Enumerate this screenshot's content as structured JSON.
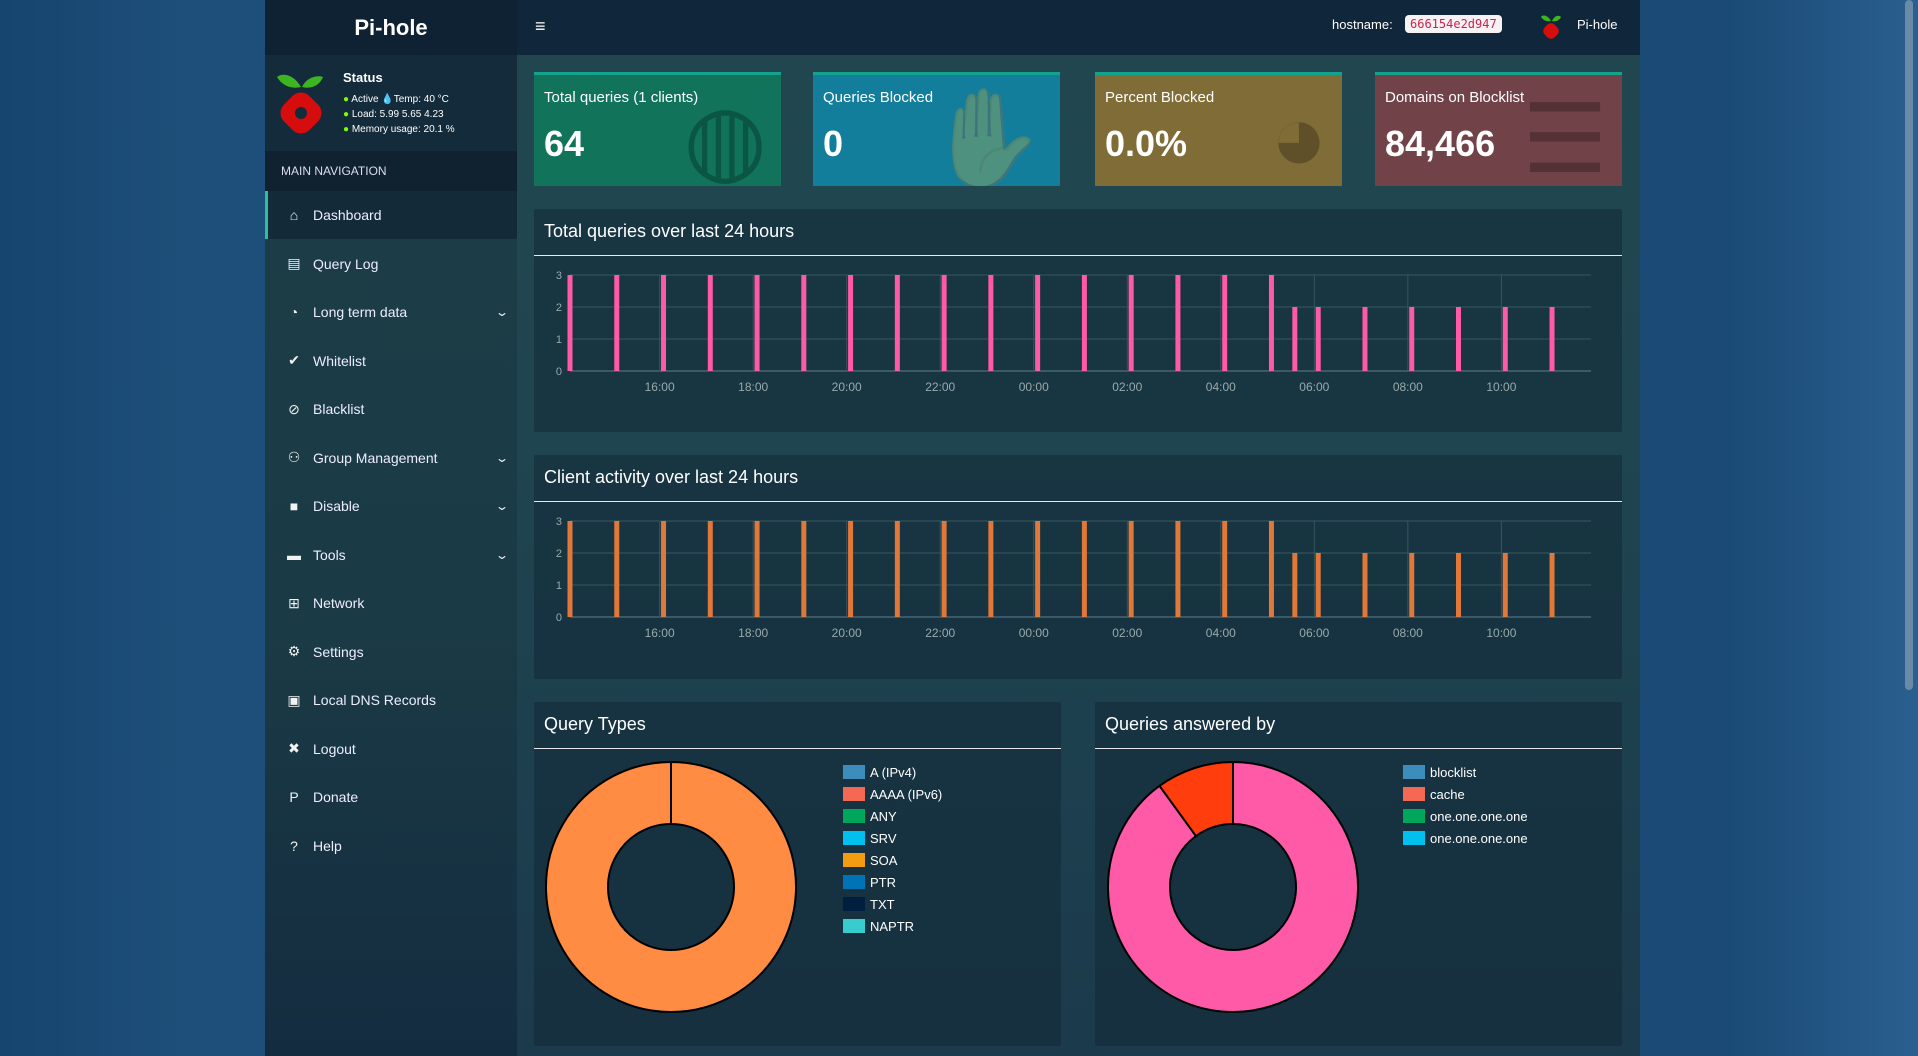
{
  "brand": "Pi-hole",
  "status": {
    "title": "Status",
    "active": "Active",
    "temp": "Temp: 40 °C",
    "load": "Load:  5.99  5.65  4.23",
    "memory": "Memory usage:  20.1 %"
  },
  "nav_header": "MAIN NAVIGATION",
  "nav": [
    {
      "label": "Dashboard",
      "icon": "home-icon",
      "glyph": "⌂",
      "active": true
    },
    {
      "label": "Query Log",
      "icon": "file-icon",
      "glyph": "▤"
    },
    {
      "label": "Long term data",
      "icon": "clock-icon",
      "glyph": "◔",
      "chevron": true
    },
    {
      "label": "Whitelist",
      "icon": "check-circle-icon",
      "glyph": "✔"
    },
    {
      "label": "Blacklist",
      "icon": "ban-icon",
      "glyph": "⊘"
    },
    {
      "label": "Group Management",
      "icon": "users-cog-icon",
      "glyph": "⚇",
      "chevron": true
    },
    {
      "label": "Disable",
      "icon": "stop-icon",
      "glyph": "■",
      "chevron": true
    },
    {
      "label": "Tools",
      "icon": "folder-icon",
      "glyph": "▬",
      "chevron": true
    },
    {
      "label": "Network",
      "icon": "network-icon",
      "glyph": "⊞"
    },
    {
      "label": "Settings",
      "icon": "gears-icon",
      "glyph": "⚙"
    },
    {
      "label": "Local DNS Records",
      "icon": "address-book-icon",
      "glyph": "▣"
    },
    {
      "label": "Logout",
      "icon": "user-times-icon",
      "glyph": "✖"
    },
    {
      "label": "Donate",
      "icon": "paypal-icon",
      "glyph": "P"
    },
    {
      "label": "Help",
      "icon": "question-circle-icon",
      "glyph": "?"
    }
  ],
  "topbar": {
    "hostname_label": "hostname:",
    "hostname": "666154e2d947",
    "user": "Pi-hole"
  },
  "stats": [
    {
      "label": "Total queries (1 clients)",
      "value": "64",
      "color": "#10735a",
      "icon": "globe-icon",
      "glyph": "◍"
    },
    {
      "label": "Queries Blocked",
      "value": "0",
      "color": "#137e9c",
      "icon": "hand-icon",
      "glyph": "✋"
    },
    {
      "label": "Percent Blocked",
      "value": "0.0%",
      "color": "#806c37",
      "icon": "pie-chart-icon",
      "glyph": "◕"
    },
    {
      "label": "Domains on Blocklist",
      "value": "84,466",
      "color": "#714348",
      "icon": "list-icon",
      "glyph": "☰"
    }
  ],
  "chart_data": [
    {
      "type": "bar",
      "title": "Total queries over last 24 hours",
      "color": "#ff5aa8",
      "xlim": [
        "14:05",
        "11:55"
      ],
      "ylim": [
        0,
        3
      ],
      "yticks": [
        "0",
        "1",
        "2",
        "3"
      ],
      "xticks": [
        "16:00",
        "18:00",
        "20:00",
        "22:00",
        "00:00",
        "02:00",
        "04:00",
        "06:00",
        "08:00",
        "10:00"
      ],
      "x": [
        "14:05",
        "15:05",
        "16:05",
        "17:05",
        "18:05",
        "19:05",
        "20:05",
        "21:05",
        "22:05",
        "23:05",
        "00:05",
        "01:05",
        "02:05",
        "03:05",
        "04:05",
        "05:05",
        "05:35",
        "06:05",
        "07:05",
        "08:05",
        "09:05",
        "10:05",
        "11:05"
      ],
      "values": [
        3,
        3,
        3,
        3,
        3,
        3,
        3,
        3,
        3,
        3,
        3,
        3,
        3,
        3,
        3,
        3,
        2,
        2,
        2,
        2,
        2,
        2,
        2
      ]
    },
    {
      "type": "bar",
      "title": "Client activity over last 24 hours",
      "color": "#e0783a",
      "xlim": [
        "14:05",
        "11:55"
      ],
      "ylim": [
        0,
        3
      ],
      "yticks": [
        "0",
        "1",
        "2",
        "3"
      ],
      "xticks": [
        "16:00",
        "18:00",
        "20:00",
        "22:00",
        "00:00",
        "02:00",
        "04:00",
        "06:00",
        "08:00",
        "10:00"
      ],
      "x": [
        "14:05",
        "15:05",
        "16:05",
        "17:05",
        "18:05",
        "19:05",
        "20:05",
        "21:05",
        "22:05",
        "23:05",
        "00:05",
        "01:05",
        "02:05",
        "03:05",
        "04:05",
        "05:05",
        "05:35",
        "06:05",
        "07:05",
        "08:05",
        "09:05",
        "10:05",
        "11:05"
      ],
      "values": [
        3,
        3,
        3,
        3,
        3,
        3,
        3,
        3,
        3,
        3,
        3,
        3,
        3,
        3,
        3,
        3,
        2,
        2,
        2,
        2,
        2,
        2,
        2
      ]
    },
    {
      "type": "pie",
      "title": "Query Types",
      "legend": [
        {
          "label": "A (IPv4)",
          "color": "#3c8dbc"
        },
        {
          "label": "AAAA (IPv6)",
          "color": "#f56954"
        },
        {
          "label": "ANY",
          "color": "#00a65a"
        },
        {
          "label": "SRV",
          "color": "#00c0ef"
        },
        {
          "label": "SOA",
          "color": "#f39c12"
        },
        {
          "label": "PTR",
          "color": "#0073b7"
        },
        {
          "label": "TXT",
          "color": "#001f3f"
        },
        {
          "label": "NAPTR",
          "color": "#39cccc"
        }
      ],
      "slices": [
        {
          "value": 100,
          "color": "#ff8c42"
        }
      ]
    },
    {
      "type": "pie",
      "title": "Queries answered by",
      "legend": [
        {
          "label": "blocklist",
          "color": "#3c8dbc"
        },
        {
          "label": "cache",
          "color": "#f56954"
        },
        {
          "label": "one.one.one.one",
          "color": "#00a65a"
        },
        {
          "label": "one.one.one.one",
          "color": "#00c0ef"
        }
      ],
      "slices": [
        {
          "value": 90,
          "color": "#ff5aa8"
        },
        {
          "value": 10,
          "color": "#ff3d0d"
        }
      ]
    }
  ]
}
